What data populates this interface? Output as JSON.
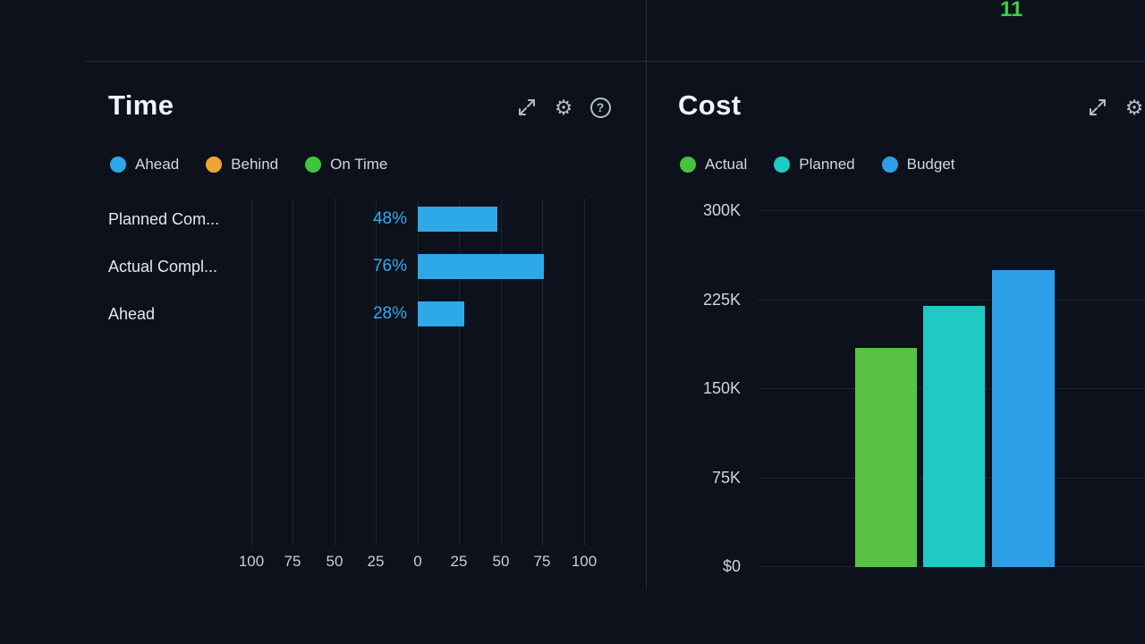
{
  "page": {
    "background": "#0c111b",
    "divider_color": "#232b3a"
  },
  "top_strip": {
    "partial_metric_value": "11",
    "value_color": "#3ecf45"
  },
  "icons": {
    "gear_glyph": "⚙",
    "help_glyph": "?"
  },
  "time_panel": {
    "title": "Time",
    "legend": [
      {
        "label": "Ahead",
        "color": "#2ca8e8"
      },
      {
        "label": "Behind",
        "color": "#f0a433"
      },
      {
        "label": "On Time",
        "color": "#3fc53f"
      }
    ]
  },
  "cost_panel": {
    "title": "Cost",
    "legend": [
      {
        "label": "Actual",
        "color": "#45c53c"
      },
      {
        "label": "Planned",
        "color": "#1fc9c4"
      },
      {
        "label": "Budget",
        "color": "#2d9fe8"
      }
    ]
  },
  "chart_data": [
    {
      "type": "bar",
      "orientation": "horizontal",
      "panel": "Time",
      "categories": [
        "Planned Com...",
        "Actual Compl...",
        "Ahead"
      ],
      "values": [
        48,
        76,
        28
      ],
      "value_labels": [
        "48%",
        "76%",
        "28%"
      ],
      "unit": "%",
      "bar_color": "#2da9e8",
      "x_ticks": [
        "100",
        "75",
        "50",
        "25",
        "0",
        "25",
        "50",
        "75",
        "100"
      ],
      "xlim": [
        -100,
        100
      ],
      "grid": true,
      "legend": [
        "Ahead",
        "Behind",
        "On Time"
      ],
      "legend_position": "top"
    },
    {
      "type": "bar",
      "orientation": "vertical",
      "panel": "Cost",
      "categories": [
        "Actual",
        "Planned",
        "Budget"
      ],
      "values": [
        185000,
        220000,
        250000
      ],
      "bar_colors": [
        "#58c244",
        "#1fc9c4",
        "#2d9fe8"
      ],
      "y_ticks": [
        "300K",
        "225K",
        "150K",
        "75K",
        "$0"
      ],
      "ylim": [
        0,
        300000
      ],
      "grid": true,
      "legend": [
        "Actual",
        "Planned",
        "Budget"
      ],
      "legend_position": "top"
    }
  ]
}
